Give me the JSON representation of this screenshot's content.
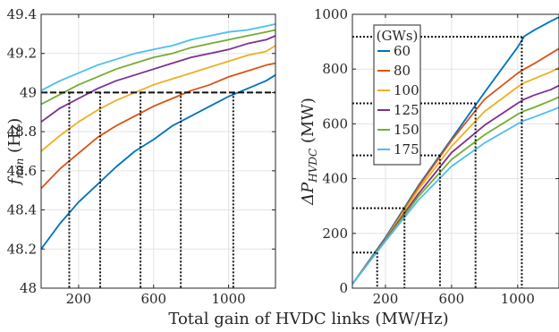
{
  "xlabel_shared": "Total gain of HVDC links (MW/Hz)",
  "charts": [
    {
      "type": "line",
      "ylabel_main": "f",
      "ylabel_sub": "min",
      "ylabel_unit": " (Hz)",
      "xlim": [
        0,
        1250
      ],
      "ylim": [
        48,
        49.4
      ],
      "xticks": [
        200,
        600,
        1000
      ],
      "xtick_labels": [
        "200",
        "600",
        "1000"
      ],
      "yticks": [
        48,
        48.2,
        48.4,
        48.6,
        48.8,
        49,
        49.2,
        49.4
      ],
      "ytick_labels": [
        "48",
        "48.2",
        "48.4",
        "48.6",
        "48.8",
        "49",
        "49.2",
        "49.4"
      ],
      "grid": true,
      "x": [
        0,
        100,
        200,
        300,
        400,
        500,
        600,
        700,
        800,
        900,
        1000,
        1100,
        1200,
        1250
      ],
      "series": [
        {
          "legend": "60",
          "color": "#0072BD",
          "values": [
            48.2,
            48.33,
            48.44,
            48.53,
            48.62,
            48.7,
            48.76,
            48.83,
            48.88,
            48.93,
            48.98,
            49.02,
            49.06,
            49.09
          ]
        },
        {
          "legend": "80",
          "color": "#D95319",
          "values": [
            48.51,
            48.61,
            48.69,
            48.77,
            48.83,
            48.88,
            48.93,
            48.97,
            49.01,
            49.04,
            49.08,
            49.11,
            49.14,
            49.15
          ]
        },
        {
          "legend": "100",
          "color": "#EDB120",
          "values": [
            48.7,
            48.78,
            48.85,
            48.91,
            48.96,
            49.0,
            49.04,
            49.07,
            49.1,
            49.13,
            49.16,
            49.19,
            49.21,
            49.24
          ]
        },
        {
          "legend": "125",
          "color": "#7E2F8E",
          "values": [
            48.85,
            48.92,
            48.97,
            49.02,
            49.06,
            49.09,
            49.12,
            49.15,
            49.18,
            49.2,
            49.22,
            49.25,
            49.27,
            49.29
          ]
        },
        {
          "legend": "150",
          "color": "#77AC30",
          "values": [
            48.94,
            48.99,
            49.04,
            49.08,
            49.12,
            49.15,
            49.18,
            49.2,
            49.23,
            49.25,
            49.27,
            49.29,
            49.31,
            49.32
          ]
        },
        {
          "legend": "175",
          "color": "#4DBEEE",
          "values": [
            49.01,
            49.06,
            49.1,
            49.14,
            49.17,
            49.2,
            49.22,
            49.24,
            49.27,
            49.29,
            49.31,
            49.32,
            49.34,
            49.35
          ]
        }
      ],
      "hline": {
        "y": 49,
        "x_end": 1250
      },
      "vlines": [
        {
          "x": 150,
          "y_top": 49
        },
        {
          "x": 315,
          "y_top": 49
        },
        {
          "x": 530,
          "y_top": 49
        },
        {
          "x": 745,
          "y_top": 49
        },
        {
          "x": 1025,
          "y_top": 49
        }
      ]
    },
    {
      "type": "line",
      "ylabel_main": "ΔP",
      "ylabel_sub": "HVDC",
      "ylabel_unit": " (MW)",
      "xlim": [
        0,
        1250
      ],
      "ylim": [
        0,
        1000
      ],
      "xticks": [
        200,
        600,
        1000
      ],
      "xtick_labels": [
        "200",
        "600",
        "1000"
      ],
      "yticks": [
        0,
        200,
        400,
        600,
        800,
        1000
      ],
      "ytick_labels": [
        "0",
        "200",
        "400",
        "600",
        "800",
        "1000"
      ],
      "grid": true,
      "legend_title": "(GWs)",
      "legend_position": "top-left",
      "x": [
        0,
        200,
        400,
        600,
        800,
        1000,
        1040,
        1100,
        1200,
        1250
      ],
      "series": [
        {
          "legend": "60",
          "color": "#0072BD",
          "values": [
            15,
            185,
            375,
            545,
            715,
            880,
            920,
            942,
            975,
            990
          ]
        },
        {
          "legend": "80",
          "color": "#D95319",
          "values": [
            15,
            180,
            370,
            540,
            690,
            785,
            800,
            820,
            857,
            875
          ]
        },
        {
          "legend": "100",
          "color": "#EDB120",
          "values": [
            15,
            178,
            360,
            518,
            645,
            735,
            750,
            765,
            790,
            805
          ]
        },
        {
          "legend": "125",
          "color": "#7E2F8E",
          "values": [
            15,
            176,
            345,
            495,
            595,
            675,
            690,
            705,
            725,
            740
          ]
        },
        {
          "legend": "150",
          "color": "#77AC30",
          "values": [
            15,
            174,
            335,
            470,
            560,
            635,
            647,
            660,
            685,
            698
          ]
        },
        {
          "legend": "175",
          "color": "#4DBEEE",
          "values": [
            15,
            172,
            322,
            445,
            530,
            600,
            612,
            625,
            648,
            660
          ]
        }
      ],
      "dotted_levels": [
        {
          "x": 150,
          "y": 130
        },
        {
          "x": 315,
          "y": 292
        },
        {
          "x": 530,
          "y": 485
        },
        {
          "x": 745,
          "y": 675
        },
        {
          "x": 1025,
          "y": 918
        }
      ]
    }
  ]
}
